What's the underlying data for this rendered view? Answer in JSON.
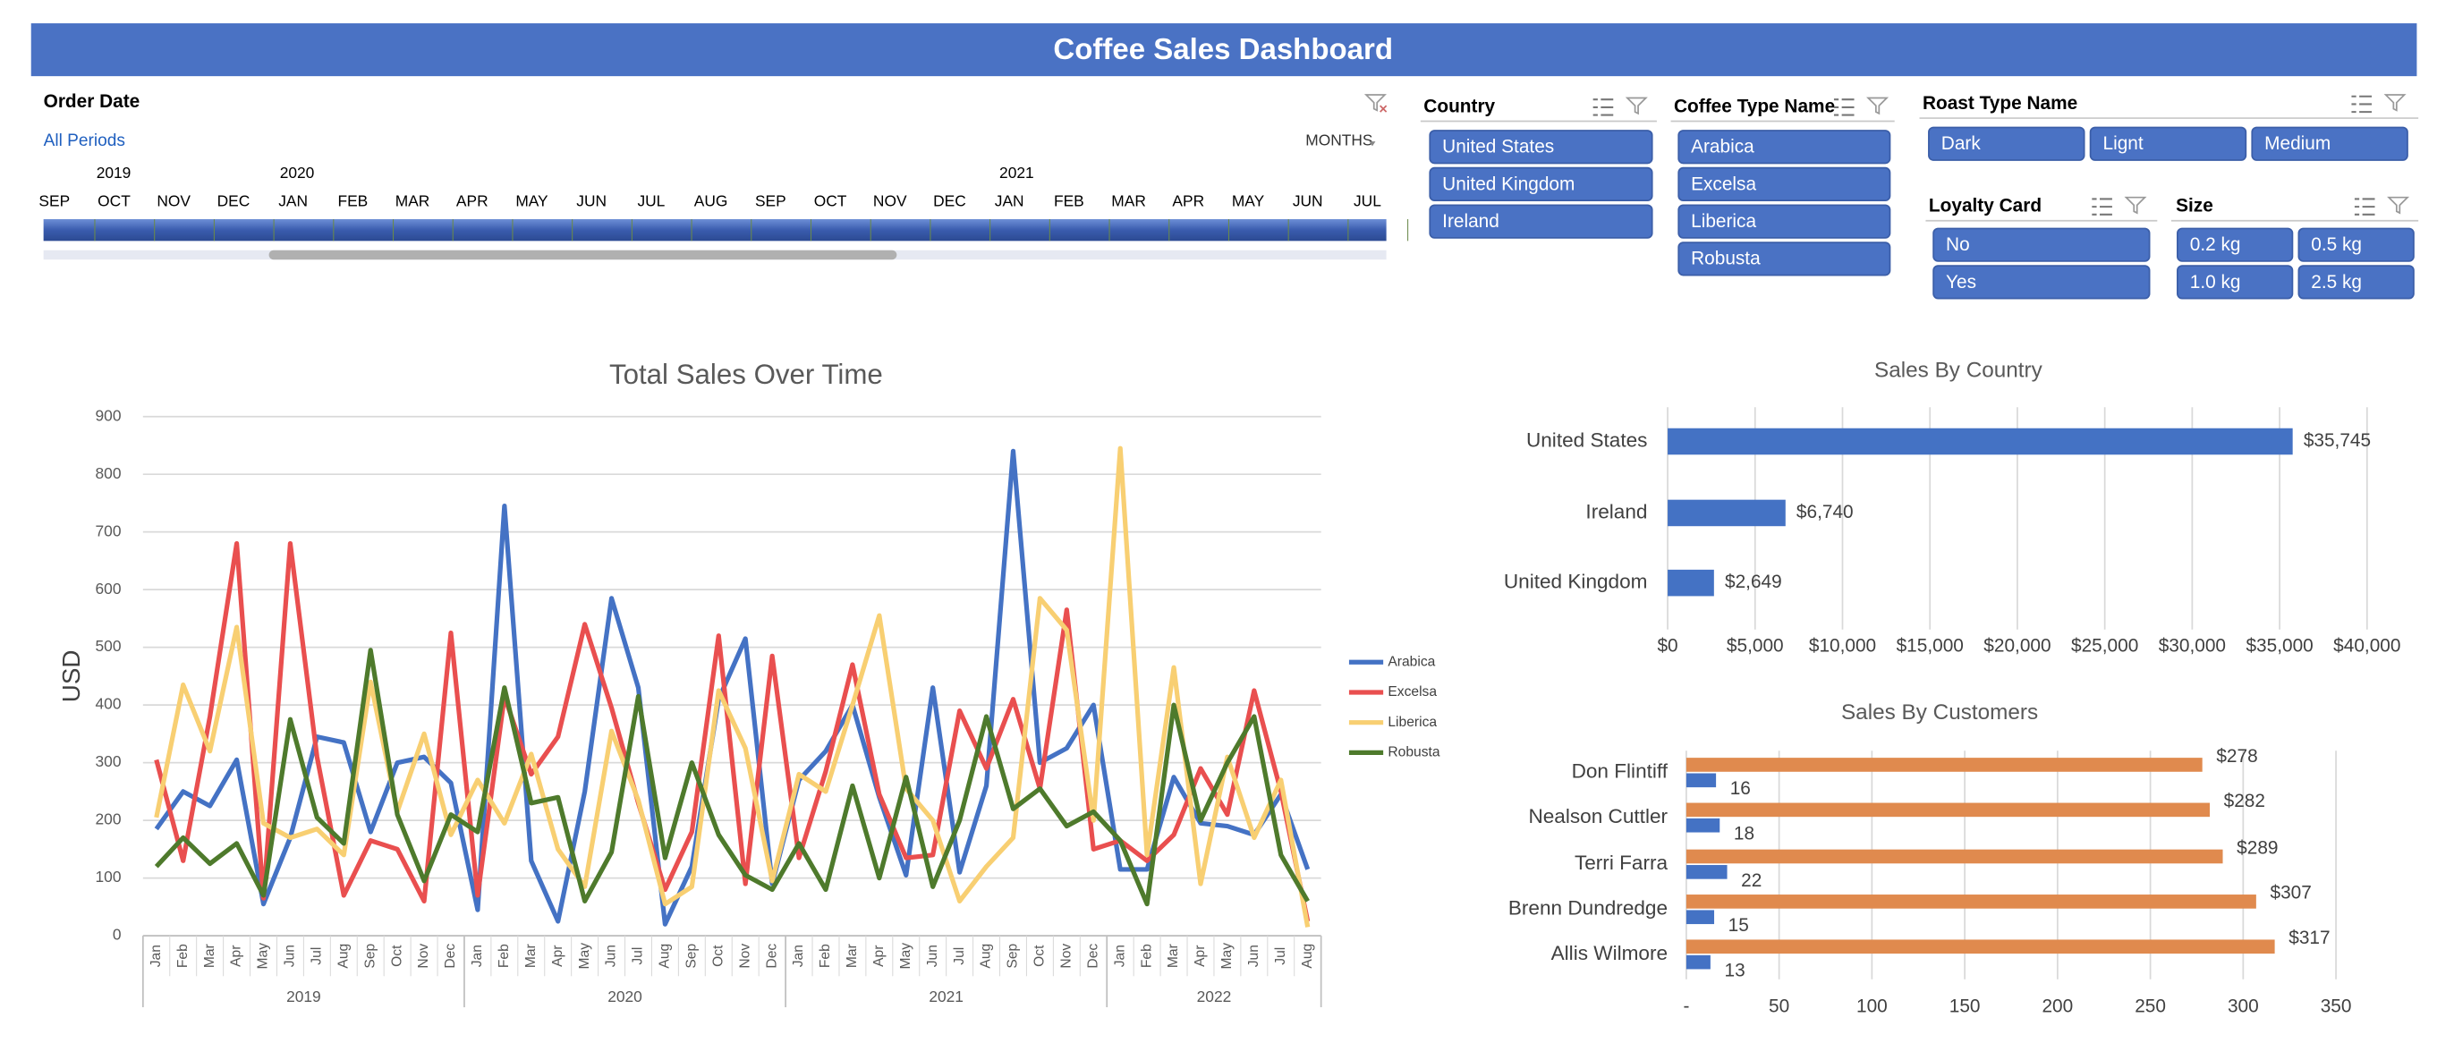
{
  "header": {
    "title": "Coffee Sales Dashboard"
  },
  "timeline": {
    "title": "Order Date",
    "selection": "All Periods",
    "level": "MONTHS",
    "years": [
      "2019",
      "2020",
      "2021"
    ],
    "months": [
      "SEP",
      "OCT",
      "NOV",
      "DEC",
      "JAN",
      "FEB",
      "MAR",
      "APR",
      "MAY",
      "JUN",
      "JUL",
      "AUG",
      "SEP",
      "OCT",
      "NOV",
      "DEC",
      "JAN",
      "FEB",
      "MAR",
      "APR",
      "MAY",
      "JUN",
      "JUL"
    ]
  },
  "slicers": [
    {
      "title": "Country",
      "items": [
        "United States",
        "United Kingdom",
        "Ireland"
      ]
    },
    {
      "title": "Coffee Type Name",
      "items": [
        "Arabica",
        "Excelsa",
        "Liberica",
        "Robusta"
      ]
    },
    {
      "title": "Roast Type Name",
      "items": [
        "Dark",
        "Lignt",
        "Medium"
      ]
    },
    {
      "title": "Loyalty Card",
      "items": [
        "No",
        "Yes"
      ]
    },
    {
      "title": "Size",
      "items": [
        "0.2 kg",
        "0.5 kg",
        "1.0 kg",
        "2.5 kg"
      ]
    }
  ],
  "chart_data": [
    {
      "type": "line",
      "title": "Total Sales Over Time",
      "y_label": "USD",
      "categories": [
        "Jan",
        "Feb",
        "Mar",
        "Apr",
        "May",
        "Jun",
        "Jul",
        "Aug",
        "Sep",
        "Oct",
        "Nov",
        "Dec",
        "Jan",
        "Feb",
        "Mar",
        "Apr",
        "May",
        "Jun",
        "Jul",
        "Aug",
        "Sep",
        "Oct",
        "Nov",
        "Dec",
        "Jan",
        "Feb",
        "Mar",
        "Apr",
        "May",
        "Jun",
        "Jul",
        "Aug",
        "Sep",
        "Oct",
        "Nov",
        "Dec",
        "Jan",
        "Feb",
        "Mar",
        "Apr",
        "May",
        "Jun",
        "Jul",
        "Aug"
      ],
      "category_groups": [
        "2019",
        "2020",
        "2021",
        "2022"
      ],
      "ylim": [
        0,
        900
      ],
      "yticks": [
        0,
        100,
        200,
        300,
        400,
        500,
        600,
        700,
        800,
        900
      ],
      "grid": true,
      "legend": "right",
      "series": [
        {
          "name": "Arabica",
          "color": "#4472c4",
          "values": [
            185,
            250,
            225,
            305,
            55,
            170,
            345,
            335,
            180,
            300,
            310,
            265,
            45,
            745,
            130,
            25,
            250,
            585,
            430,
            20,
            120,
            410,
            515,
            90,
            270,
            320,
            400,
            240,
            105,
            430,
            110,
            260,
            840,
            300,
            325,
            400,
            115,
            115,
            275,
            195,
            190,
            175,
            245,
            115
          ]
        },
        {
          "name": "Excelsa",
          "color": "#e94f4f",
          "values": [
            305,
            130,
            380,
            680,
            65,
            680,
            310,
            70,
            165,
            150,
            60,
            525,
            70,
            415,
            280,
            345,
            540,
            395,
            230,
            80,
            180,
            520,
            90,
            485,
            135,
            285,
            470,
            245,
            135,
            140,
            390,
            290,
            410,
            255,
            565,
            150,
            165,
            130,
            175,
            290,
            210,
            425,
            250,
            25
          ]
        },
        {
          "name": "Liberica",
          "color": "#f8cf72",
          "values": [
            205,
            435,
            320,
            535,
            195,
            170,
            185,
            140,
            440,
            215,
            350,
            175,
            270,
            195,
            315,
            150,
            85,
            355,
            235,
            55,
            85,
            425,
            325,
            95,
            280,
            250,
            400,
            555,
            255,
            200,
            60,
            120,
            170,
            585,
            530,
            200,
            845,
            140,
            465,
            90,
            310,
            170,
            270,
            15
          ]
        },
        {
          "name": "Robusta",
          "color": "#4e7a2c",
          "values": [
            120,
            170,
            125,
            160,
            70,
            375,
            205,
            160,
            495,
            210,
            95,
            210,
            180,
            430,
            230,
            240,
            60,
            145,
            415,
            135,
            300,
            175,
            105,
            80,
            160,
            80,
            260,
            100,
            275,
            85,
            200,
            380,
            220,
            255,
            190,
            215,
            165,
            55,
            400,
            200,
            300,
            380,
            140,
            60
          ]
        }
      ]
    },
    {
      "type": "bar",
      "orientation": "horizontal",
      "title": "Sales By Country",
      "categories": [
        "United States",
        "Ireland",
        "United Kingdom"
      ],
      "values": [
        35745,
        6740,
        2649
      ],
      "value_labels": [
        "$35,745",
        "$6,740",
        "$2,649"
      ],
      "color": "#4472c4",
      "xlim": [
        0,
        40000
      ],
      "xticks": [
        {
          "value": 0,
          "label": "$0"
        },
        {
          "value": 5000,
          "label": "$5,000"
        },
        {
          "value": 10000,
          "label": "$10,000"
        },
        {
          "value": 15000,
          "label": "$15,000"
        },
        {
          "value": 20000,
          "label": "$20,000"
        },
        {
          "value": 25000,
          "label": "$25,000"
        },
        {
          "value": 30000,
          "label": "$30,000"
        },
        {
          "value": 35000,
          "label": "$35,000"
        },
        {
          "value": 40000,
          "label": "$40,000"
        }
      ],
      "grid": true
    },
    {
      "type": "bar",
      "orientation": "horizontal",
      "title": "Sales By Customers",
      "categories": [
        "Don Flintiff",
        "Nealson Cuttler",
        "Terri Farra",
        "Brenn Dundredge",
        "Allis Wilmore"
      ],
      "series": [
        {
          "color": "#e08a4e",
          "values": [
            278,
            282,
            289,
            307,
            317
          ],
          "value_labels": [
            "$278",
            "$282",
            "$289",
            "$307",
            "$317"
          ]
        },
        {
          "color": "#4472c4",
          "values": [
            16,
            18,
            22,
            15,
            13
          ]
        }
      ],
      "xlim": [
        0,
        350
      ],
      "xticks": [
        {
          "value": 0,
          "label": "-"
        },
        50,
        100,
        150,
        200,
        250,
        300,
        350
      ],
      "grid": true
    }
  ]
}
